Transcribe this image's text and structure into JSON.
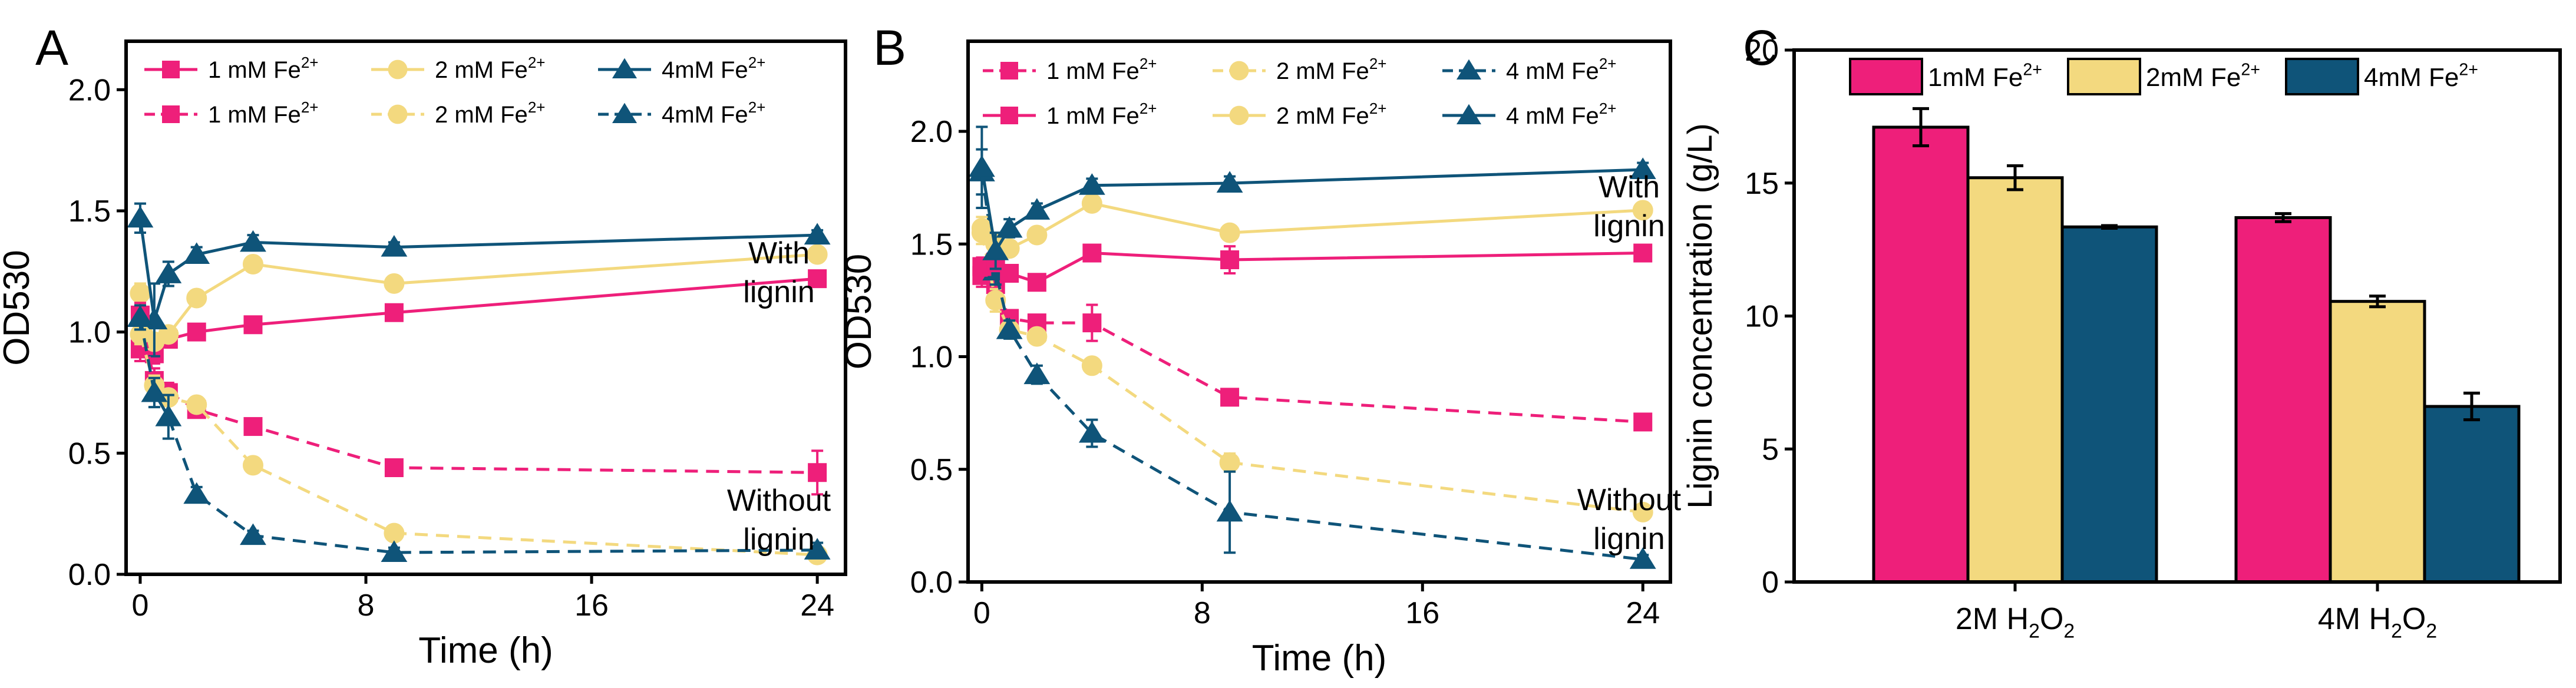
{
  "colors": {
    "pink": "#EE1F7A",
    "yellow": "#F3D97F",
    "blue": "#0F5479",
    "axis": "#000000"
  },
  "panels": {
    "a": "A",
    "b": "B",
    "c": "C"
  },
  "chart_data": [
    {
      "type": "line",
      "panel": "A",
      "xlabel": "Time (h)",
      "ylabel": "OD530",
      "xlim": [
        -0.5,
        25
      ],
      "ylim": [
        0,
        2.2
      ],
      "xticks": [
        0,
        8,
        16,
        24
      ],
      "yticks": [
        0.0,
        0.5,
        1.0,
        1.5,
        2.0
      ],
      "ytick_labels": [
        "0.0",
        "0.5",
        "1.0",
        "1.5",
        "2.0"
      ],
      "legend_placement": "top-left",
      "annotations": [
        {
          "text": [
            "With",
            "lignin"
          ]
        },
        {
          "text": [
            "Without",
            "lignin"
          ]
        }
      ],
      "series": [
        {
          "name": "1 mM Fe2+",
          "group": "with lignin",
          "color": "#EE1F7A",
          "marker": "square",
          "dashed": false,
          "x": [
            0,
            0.5,
            1,
            2,
            4,
            9,
            24
          ],
          "y": [
            0.93,
            0.91,
            0.97,
            1.0,
            1.03,
            1.08,
            1.22
          ],
          "err": [
            0.05,
            0.04,
            0.03,
            0.03,
            0.02,
            0.03,
            0.03
          ]
        },
        {
          "name": "2 mM Fe2+",
          "group": "with lignin",
          "color": "#F3D97F",
          "marker": "circle",
          "dashed": false,
          "x": [
            0,
            0.5,
            1,
            2,
            4,
            9,
            24
          ],
          "y": [
            1.16,
            0.96,
            0.99,
            1.14,
            1.28,
            1.2,
            1.32
          ],
          "err": [
            0.04,
            0.03,
            0.03,
            0.02,
            0.02,
            0.02,
            0.02
          ]
        },
        {
          "name": "4mM Fe2+",
          "group": "with lignin",
          "color": "#0F5479",
          "marker": "triangle",
          "dashed": false,
          "x": [
            0,
            0.5,
            1,
            2,
            4,
            9,
            24
          ],
          "y": [
            1.47,
            1.05,
            1.24,
            1.32,
            1.37,
            1.35,
            1.4
          ],
          "err": [
            0.06,
            0.15,
            0.05,
            0.03,
            0.03,
            0.02,
            0.02
          ]
        },
        {
          "name": "1 mM Fe2+",
          "group": "without lignin",
          "color": "#EE1F7A",
          "marker": "square",
          "dashed": true,
          "x": [
            0,
            0.5,
            1,
            2,
            4,
            9,
            24
          ],
          "y": [
            1.07,
            0.8,
            0.75,
            0.68,
            0.61,
            0.44,
            0.42
          ],
          "err": [
            0.05,
            0.05,
            0.04,
            0.03,
            0.03,
            0.03,
            0.09
          ]
        },
        {
          "name": "2 mM Fe2+",
          "group": "without lignin",
          "color": "#F3D97F",
          "marker": "circle",
          "dashed": true,
          "x": [
            0,
            0.5,
            1,
            2,
            4,
            9,
            24
          ],
          "y": [
            0.99,
            0.78,
            0.73,
            0.7,
            0.45,
            0.17,
            0.08
          ],
          "err": [
            0.04,
            0.04,
            0.03,
            0.03,
            0.02,
            0.02,
            0.02
          ]
        },
        {
          "name": "4mM Fe2+",
          "group": "without lignin",
          "color": "#0F5479",
          "marker": "triangle",
          "dashed": true,
          "x": [
            0,
            0.5,
            1,
            2,
            4,
            9,
            24
          ],
          "y": [
            1.06,
            0.75,
            0.65,
            0.33,
            0.16,
            0.09,
            0.1
          ],
          "err": [
            0.05,
            0.06,
            0.09,
            0.03,
            0.02,
            0.02,
            0.03
          ]
        }
      ]
    },
    {
      "type": "line",
      "panel": "B",
      "xlabel": "Time (h)",
      "ylabel": "OD530",
      "xlim": [
        -0.5,
        25
      ],
      "ylim": [
        0,
        2.4
      ],
      "xticks": [
        0,
        8,
        16,
        24
      ],
      "yticks": [
        0.0,
        0.5,
        1.0,
        1.5,
        2.0
      ],
      "ytick_labels": [
        "0.0",
        "0.5",
        "1.0",
        "1.5",
        "2.0"
      ],
      "legend_placement": "top",
      "annotations": [
        {
          "text": [
            "With",
            "lignin"
          ]
        },
        {
          "text": [
            "Without",
            "lignin"
          ]
        }
      ],
      "series": [
        {
          "name": "1 mM Fe2+",
          "group": "without lignin",
          "color": "#EE1F7A",
          "marker": "square",
          "dashed": true,
          "x": [
            0,
            0.5,
            1,
            2,
            4,
            9,
            24
          ],
          "y": [
            1.36,
            1.32,
            1.17,
            1.15,
            1.15,
            0.82,
            0.71
          ],
          "err": [
            0.05,
            0.04,
            0.03,
            0.03,
            0.08,
            0.03,
            0.03
          ]
        },
        {
          "name": "2 mM Fe2+",
          "group": "without lignin",
          "color": "#F3D97F",
          "marker": "circle",
          "dashed": true,
          "x": [
            0,
            0.5,
            1,
            2,
            4,
            9,
            24
          ],
          "y": [
            1.55,
            1.25,
            1.12,
            1.09,
            0.96,
            0.53,
            0.31
          ],
          "err": [
            0.05,
            0.05,
            0.03,
            0.02,
            0.02,
            0.04,
            0.03
          ]
        },
        {
          "name": "4 mM Fe2+",
          "group": "without lignin",
          "color": "#0F5479",
          "marker": "triangle",
          "dashed": true,
          "x": [
            0,
            0.5,
            1,
            2,
            4,
            9,
            24
          ],
          "y": [
            1.82,
            1.38,
            1.12,
            0.92,
            0.66,
            0.31,
            0.1
          ],
          "err": [
            0.1,
            0.06,
            0.04,
            0.04,
            0.06,
            0.18,
            0.02
          ]
        },
        {
          "name": "1 mM Fe2+",
          "group": "with lignin",
          "color": "#EE1F7A",
          "marker": "square",
          "dashed": false,
          "x": [
            0,
            0.5,
            1,
            2,
            4,
            9,
            24
          ],
          "y": [
            1.4,
            1.42,
            1.37,
            1.33,
            1.46,
            1.43,
            1.46
          ],
          "err": [
            0.04,
            0.04,
            0.03,
            0.03,
            0.03,
            0.06,
            0.03
          ]
        },
        {
          "name": "2 mM Fe2+",
          "group": "with lignin",
          "color": "#F3D97F",
          "marker": "circle",
          "dashed": false,
          "x": [
            0,
            0.5,
            1,
            2,
            4,
            9,
            24
          ],
          "y": [
            1.57,
            1.5,
            1.48,
            1.54,
            1.68,
            1.55,
            1.65
          ],
          "err": [
            0.05,
            0.04,
            0.03,
            0.03,
            0.03,
            0.03,
            0.03
          ]
        },
        {
          "name": "4 mM Fe2+",
          "group": "with lignin",
          "color": "#0F5479",
          "marker": "triangle",
          "dashed": false,
          "x": [
            0,
            0.5,
            1,
            2,
            4,
            9,
            24
          ],
          "y": [
            1.84,
            1.47,
            1.57,
            1.65,
            1.76,
            1.77,
            1.83
          ],
          "err": [
            0.18,
            0.08,
            0.04,
            0.03,
            0.03,
            0.03,
            0.03
          ]
        }
      ]
    },
    {
      "type": "bar",
      "panel": "C",
      "categories": [
        "2M H2O2",
        "4M H2O2"
      ],
      "xlabel": "",
      "ylabel": "Lignin concentration (g/L)",
      "ylim": [
        0,
        20
      ],
      "yticks": [
        0,
        5,
        10,
        15,
        20
      ],
      "legend_placement": "top",
      "series": [
        {
          "name": "1mM Fe2+",
          "color": "#EE1F7A",
          "values": [
            17.1,
            13.7
          ],
          "err": [
            0.7,
            0.15
          ]
        },
        {
          "name": "2mM Fe2+",
          "color": "#F3D97F",
          "values": [
            15.2,
            10.55
          ],
          "err": [
            0.45,
            0.2
          ]
        },
        {
          "name": "4mM Fe2+",
          "color": "#0F5479",
          "values": [
            13.35,
            6.6
          ],
          "err": [
            0.05,
            0.5
          ]
        }
      ]
    }
  ]
}
